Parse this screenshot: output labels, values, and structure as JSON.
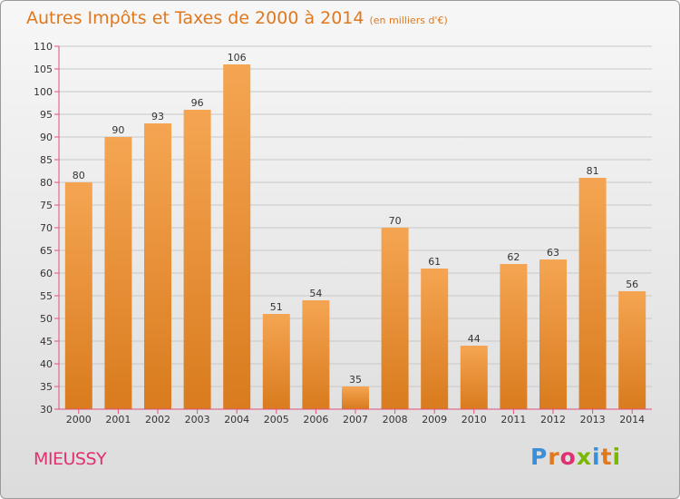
{
  "header": {
    "title": "Autres Impôts et Taxes de 2000 à 2014",
    "subtitle": "(en milliers d'€)"
  },
  "footer": {
    "commune": "MIEUSSY",
    "logo_letters": [
      "P",
      "r",
      "o",
      "x",
      "i",
      "t",
      "i"
    ],
    "logo_colors": [
      "#3a8fd8",
      "#e0781e",
      "#e03070",
      "#7ab800",
      "#3a8fd8",
      "#e0781e",
      "#7ab800"
    ]
  },
  "colors": {
    "bar_top": "#f5a552",
    "bar_bottom": "#d97b1e",
    "title": "#e0781e",
    "commune": "#e03070",
    "axis": "#e0507a"
  },
  "chart_data": {
    "type": "bar",
    "categories": [
      "2000",
      "2001",
      "2002",
      "2003",
      "2004",
      "2005",
      "2006",
      "2007",
      "2008",
      "2009",
      "2010",
      "2011",
      "2012",
      "2013",
      "2014"
    ],
    "values": [
      80,
      90,
      93,
      96,
      106,
      51,
      54,
      35,
      70,
      61,
      44,
      62,
      63,
      81,
      56
    ],
    "title": "Autres Impôts et Taxes de 2000 à 2014",
    "xlabel": "",
    "ylabel": "",
    "ylim": [
      30,
      110
    ],
    "yticks": [
      30,
      35,
      40,
      45,
      50,
      55,
      60,
      65,
      70,
      75,
      80,
      85,
      90,
      95,
      100,
      105,
      110
    ],
    "grid": true,
    "data_labels": true
  }
}
